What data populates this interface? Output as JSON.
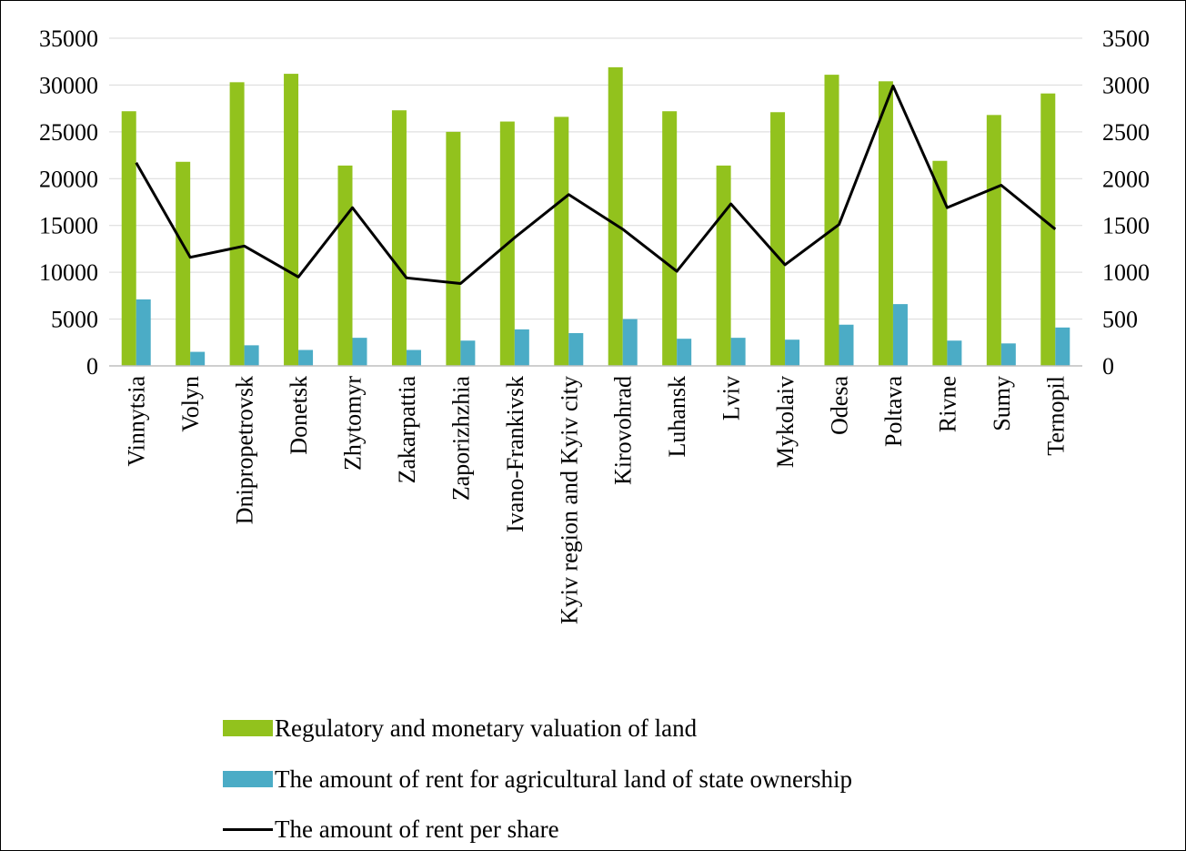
{
  "colors": {
    "valuation": "#92c21d",
    "rent_state": "#4bacc6",
    "rent_share": "#000000",
    "grid": "#d9d9d9",
    "axis": "#bfbfbf"
  },
  "chart_data": {
    "type": "bar",
    "categories": [
      "Vinnytsia",
      "Volyn",
      "Dnipropetrovsk",
      "Donetsk",
      "Zhytomyr",
      "Zakarpattia",
      "Zaporizhzhia",
      "Ivano-Frankivsk",
      "Kyiv region and Kyiv city",
      "Kirovohrad",
      "Luhansk",
      "Lviv",
      "Mykolaiv",
      "Odesa",
      "Poltava",
      "Rivne",
      "Sumy",
      "Ternopil"
    ],
    "series": [
      {
        "name": "Regulatory and monetary valuation of land",
        "type": "bar",
        "axis": "left",
        "color": "#92c21d",
        "values": [
          27200,
          21800,
          30300,
          31200,
          21400,
          27300,
          25000,
          26100,
          26600,
          31900,
          27200,
          21400,
          27100,
          31100,
          30400,
          21900,
          26800,
          29100
        ]
      },
      {
        "name": "The amount of rent for agricultural land of state ownership",
        "type": "bar",
        "axis": "left",
        "color": "#4bacc6",
        "values": [
          7100,
          1500,
          2200,
          1700,
          3000,
          1700,
          2700,
          3900,
          3500,
          5000,
          2900,
          3000,
          2800,
          4400,
          6600,
          2700,
          2400,
          4100
        ]
      },
      {
        "name": "The amount of rent per share",
        "type": "line",
        "axis": "right",
        "color": "#000000",
        "values": [
          2170,
          1160,
          1280,
          950,
          1690,
          940,
          880,
          1370,
          1830,
          1460,
          1010,
          1730,
          1080,
          1510,
          2990,
          1690,
          1930,
          1460
        ]
      }
    ],
    "y_left": {
      "ylim": [
        0,
        35000
      ],
      "ticks": [
        "0",
        "5000",
        "10000",
        "15000",
        "20000",
        "25000",
        "30000",
        "35000"
      ]
    },
    "y_right": {
      "ylim": [
        0,
        3500
      ],
      "ticks": [
        "0",
        "500",
        "1000",
        "1500",
        "2000",
        "2500",
        "3000",
        "3500"
      ]
    },
    "grid": true,
    "legend_position": "bottom"
  }
}
